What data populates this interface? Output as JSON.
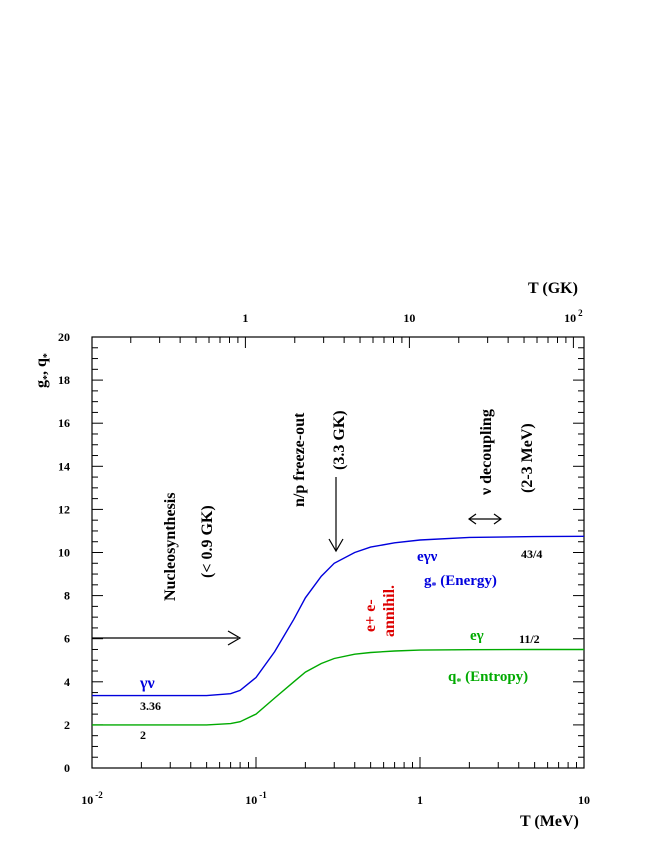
{
  "chart_data": {
    "type": "line",
    "xscale": "log",
    "xlim": [
      0.01,
      10
    ],
    "ylim": [
      0,
      20
    ],
    "xlabel": "T (MeV)",
    "x2label": "T (GK)",
    "ylabel_main": "g",
    "ylabel_sub1": "*",
    "ylabel_mid": ", q",
    "ylabel_sub2": "*",
    "x_ticks": [
      {
        "value": 0.01,
        "base": "10",
        "exp": "-2"
      },
      {
        "value": 0.1,
        "base": "10",
        "exp": "-1"
      },
      {
        "value": 1,
        "base": "1",
        "exp": ""
      },
      {
        "value": 10,
        "base": "10",
        "exp": ""
      }
    ],
    "x2_ticks": [
      {
        "value_gk": 1,
        "base": "1",
        "exp": ""
      },
      {
        "value_gk": 10,
        "base": "10",
        "exp": ""
      },
      {
        "value_gk": 100,
        "base": "10",
        "exp": "2"
      }
    ],
    "y_ticks": [
      0,
      2,
      4,
      6,
      8,
      10,
      12,
      14,
      16,
      18,
      20
    ],
    "series": [
      {
        "key": "energy",
        "color": "#0000dd",
        "x": [
          0.01,
          0.05,
          0.07,
          0.08,
          0.1,
          0.13,
          0.17,
          0.2,
          0.25,
          0.3,
          0.4,
          0.5,
          0.7,
          1,
          2,
          5,
          10
        ],
        "y": [
          3.36,
          3.36,
          3.45,
          3.6,
          4.2,
          5.4,
          6.9,
          7.9,
          8.9,
          9.5,
          10.0,
          10.25,
          10.45,
          10.58,
          10.7,
          10.74,
          10.75
        ]
      },
      {
        "key": "entropy",
        "color": "#00aa00",
        "x": [
          0.01,
          0.05,
          0.07,
          0.08,
          0.1,
          0.13,
          0.17,
          0.2,
          0.25,
          0.3,
          0.4,
          0.5,
          0.7,
          1,
          2,
          5,
          10
        ],
        "y": [
          2.0,
          2.0,
          2.06,
          2.15,
          2.5,
          3.25,
          4.0,
          4.45,
          4.85,
          5.08,
          5.28,
          5.36,
          5.43,
          5.47,
          5.49,
          5.5,
          5.5
        ]
      }
    ],
    "annotations": {
      "nucleosynthesis": "Nucleosynthesis",
      "nucleosynthesis_temp": "(< 0.9 GK)",
      "freezeout": "n/p freeze-out",
      "freezeout_temp": "(3.3 GK)",
      "decoupling": "ν decoupling",
      "decoupling_temp": "(2-3 MeV)",
      "annihil_1": "e+ e-",
      "annihil_2": "annihil.",
      "energy_particles": "eγν",
      "energy_label": "g",
      "energy_label_sub": "*",
      "energy_label_rest": " (Energy)",
      "energy_value": "43/4",
      "entropy_particles": "eγ",
      "entropy_label": "q",
      "entropy_label_sub": "*",
      "entropy_label_rest": " (Entropy)",
      "entropy_value": "11/2",
      "low_particles": "γν",
      "low_energy_value": "3.36",
      "low_entropy_value": "2"
    },
    "colors": {
      "energy": "#0000dd",
      "entropy": "#00aa00",
      "annihilation": "#dd0000",
      "axis": "#000000"
    }
  }
}
